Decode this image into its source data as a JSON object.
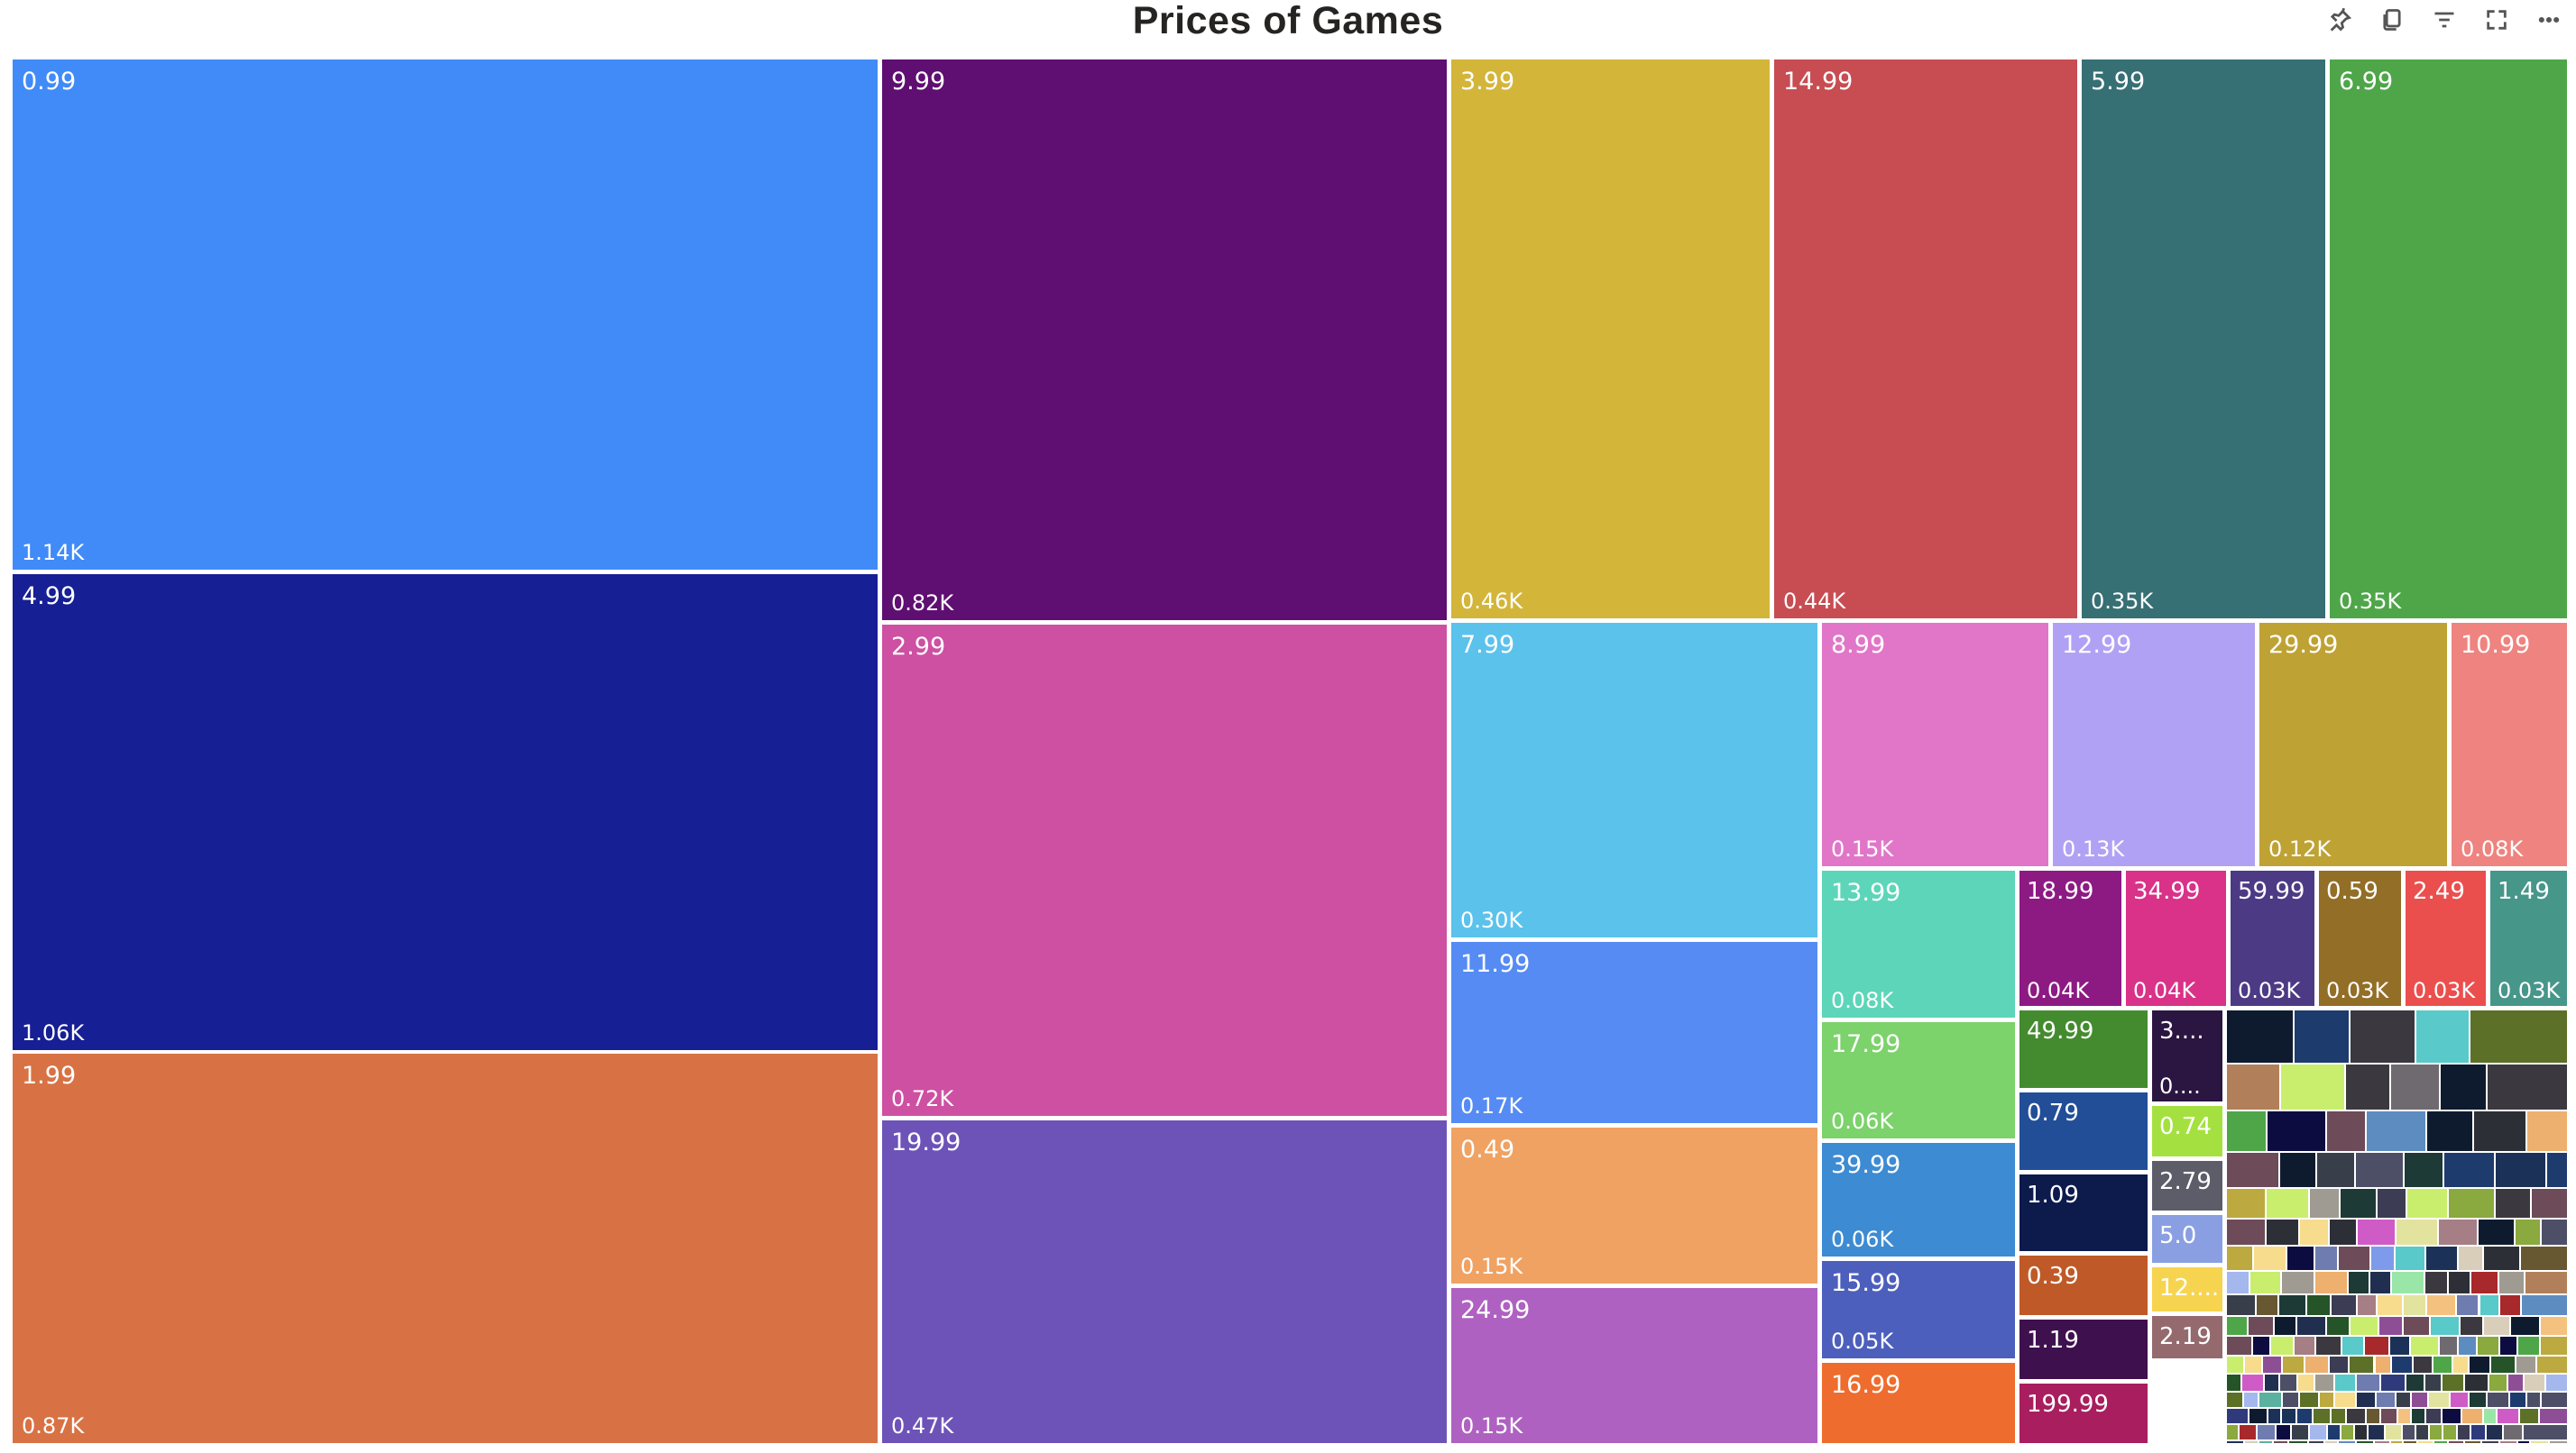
{
  "toolbar": {
    "icons": [
      "pin-icon",
      "copy-icon",
      "filter-icon",
      "focus-mode-icon",
      "more-options-icon"
    ]
  },
  "chart_data": {
    "type": "treemap",
    "title": "Prices of Games",
    "labeled_tiles": [
      {
        "label": "0.99",
        "value": "1.14K",
        "color": "#418BF8"
      },
      {
        "label": "4.99",
        "value": "1.06K",
        "color": "#161F94"
      },
      {
        "label": "1.99",
        "value": "0.87K",
        "color": "#D87244"
      },
      {
        "label": "9.99",
        "value": "0.82K",
        "color": "#5F0E71"
      },
      {
        "label": "2.99",
        "value": "0.72K",
        "color": "#CE50A2"
      },
      {
        "label": "19.99",
        "value": "0.47K",
        "color": "#6D53B8"
      },
      {
        "label": "3.99",
        "value": "0.46K",
        "color": "#D3B53A"
      },
      {
        "label": "14.99",
        "value": "0.44K",
        "color": "#C74D52"
      },
      {
        "label": "5.99",
        "value": "0.35K",
        "color": "#366F74"
      },
      {
        "label": "6.99",
        "value": "0.35K",
        "color": "#4EA649"
      },
      {
        "label": "7.99",
        "value": "0.30K",
        "color": "#5BC2EC"
      },
      {
        "label": "11.99",
        "value": "0.17K",
        "color": "#558BF3"
      },
      {
        "label": "0.49",
        "value": "0.15K",
        "color": "#F0A263"
      },
      {
        "label": "24.99",
        "value": "0.15K",
        "color": "#AF61C1"
      },
      {
        "label": "8.99",
        "value": "0.15K",
        "color": "#E176C8"
      },
      {
        "label": "12.99",
        "value": "0.13K",
        "color": "#B1A1F5"
      },
      {
        "label": "29.99",
        "value": "0.12K",
        "color": "#BFA234"
      },
      {
        "label": "10.99",
        "value": "0.08K",
        "color": "#EE837F"
      },
      {
        "label": "13.99",
        "value": "0.08K",
        "color": "#5DD5B9"
      },
      {
        "label": "17.99",
        "value": "0.06K",
        "color": "#7CD26B"
      },
      {
        "label": "39.99",
        "value": "0.06K",
        "color": "#3D8BD2"
      },
      {
        "label": "15.99",
        "value": "0.05K",
        "color": "#4D5FBC"
      },
      {
        "label": "16.99",
        "value": "",
        "color": "#EE6C2D"
      },
      {
        "label": "18.99",
        "value": "0.04K",
        "color": "#8D1A83"
      },
      {
        "label": "34.99",
        "value": "0.04K",
        "color": "#D93288"
      },
      {
        "label": "59.99",
        "value": "0.03K",
        "color": "#4C3A85"
      },
      {
        "label": "0.59",
        "value": "0.03K",
        "color": "#926E27"
      },
      {
        "label": "2.49",
        "value": "0.03K",
        "color": "#EA4F4E"
      },
      {
        "label": "1.49",
        "value": "0.03K",
        "color": "#47968A"
      },
      {
        "label": "49.99",
        "value": "",
        "color": "#448B2F"
      },
      {
        "label": "0.79",
        "value": "",
        "color": "#224E98"
      },
      {
        "label": "1.09",
        "value": "",
        "color": "#0C1A4C"
      },
      {
        "label": "0.39",
        "value": "",
        "color": "#BF5A28"
      },
      {
        "label": "1.19",
        "value": "",
        "color": "#3F104E"
      },
      {
        "label": "199.99",
        "value": "",
        "color": "#A81E5E"
      },
      {
        "label": "3....",
        "value": "0....",
        "color": "#2B1541"
      },
      {
        "label": "0.74",
        "value": "",
        "color": "#A4E140"
      },
      {
        "label": "2.79",
        "value": "",
        "color": "#5C5D68"
      },
      {
        "label": "5.0",
        "value": "",
        "color": "#8A9FE2"
      },
      {
        "label": "12....",
        "value": "",
        "color": "#F6D44F"
      },
      {
        "label": "2.19",
        "value": "",
        "color": "#946A6E"
      }
    ]
  }
}
